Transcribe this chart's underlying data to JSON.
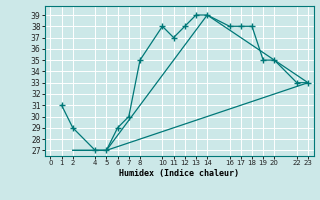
{
  "xlabel": "Humidex (Indice chaleur)",
  "bg_color": "#cce8e8",
  "grid_color": "#ffffff",
  "line_color": "#007878",
  "ylim": [
    26.5,
    39.8
  ],
  "xlim": [
    -0.5,
    23.5
  ],
  "yticks": [
    27,
    28,
    29,
    30,
    31,
    32,
    33,
    34,
    35,
    36,
    37,
    38,
    39
  ],
  "xticks": [
    0,
    1,
    2,
    4,
    5,
    6,
    7,
    8,
    10,
    11,
    12,
    13,
    14,
    16,
    17,
    18,
    19,
    20,
    22,
    23
  ],
  "xtick_labels": [
    "0",
    "1",
    "2",
    "4",
    "5",
    "6",
    "7",
    "8",
    "10",
    "11",
    "12",
    "13",
    "14",
    "16",
    "17",
    "18",
    "19",
    "20",
    "22",
    "23"
  ],
  "line1_x": [
    1,
    2,
    4,
    5,
    6,
    7,
    8,
    10,
    11,
    12,
    13,
    14,
    16,
    17,
    18,
    19,
    20,
    22,
    23
  ],
  "line1_y": [
    31,
    29,
    27,
    27,
    29,
    30,
    35,
    38,
    37,
    38,
    39,
    39,
    38,
    38,
    38,
    35,
    35,
    33,
    33
  ],
  "line2_x": [
    2,
    5,
    14,
    23
  ],
  "line2_y": [
    27,
    27,
    39,
    33
  ],
  "line3_x": [
    2,
    5,
    23
  ],
  "line3_y": [
    27,
    27,
    33
  ]
}
